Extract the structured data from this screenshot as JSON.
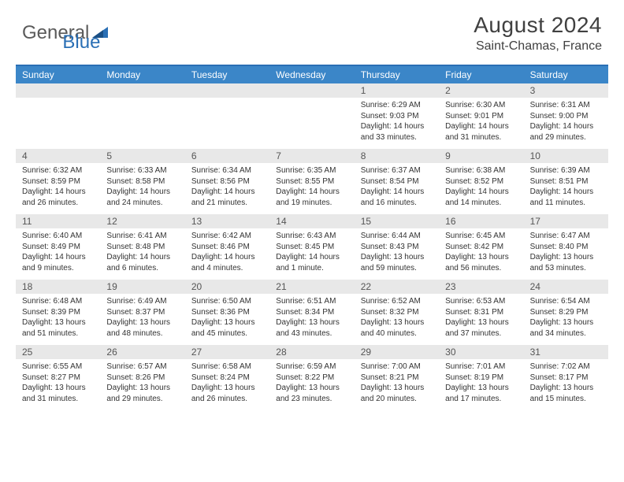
{
  "brand": {
    "part1": "General",
    "part2": "Blue"
  },
  "title": "August 2024",
  "location": "Saint-Chamas, France",
  "colors": {
    "header_bg": "#3b86c8",
    "border": "#2a6fb5",
    "date_bg": "#e8e8e8",
    "text": "#333333",
    "muted": "#555555"
  },
  "day_names": [
    "Sunday",
    "Monday",
    "Tuesday",
    "Wednesday",
    "Thursday",
    "Friday",
    "Saturday"
  ],
  "weeks": [
    {
      "dates": [
        "",
        "",
        "",
        "",
        "1",
        "2",
        "3"
      ],
      "details": [
        "",
        "",
        "",
        "",
        "Sunrise: 6:29 AM\nSunset: 9:03 PM\nDaylight: 14 hours and 33 minutes.",
        "Sunrise: 6:30 AM\nSunset: 9:01 PM\nDaylight: 14 hours and 31 minutes.",
        "Sunrise: 6:31 AM\nSunset: 9:00 PM\nDaylight: 14 hours and 29 minutes."
      ]
    },
    {
      "dates": [
        "4",
        "5",
        "6",
        "7",
        "8",
        "9",
        "10"
      ],
      "details": [
        "Sunrise: 6:32 AM\nSunset: 8:59 PM\nDaylight: 14 hours and 26 minutes.",
        "Sunrise: 6:33 AM\nSunset: 8:58 PM\nDaylight: 14 hours and 24 minutes.",
        "Sunrise: 6:34 AM\nSunset: 8:56 PM\nDaylight: 14 hours and 21 minutes.",
        "Sunrise: 6:35 AM\nSunset: 8:55 PM\nDaylight: 14 hours and 19 minutes.",
        "Sunrise: 6:37 AM\nSunset: 8:54 PM\nDaylight: 14 hours and 16 minutes.",
        "Sunrise: 6:38 AM\nSunset: 8:52 PM\nDaylight: 14 hours and 14 minutes.",
        "Sunrise: 6:39 AM\nSunset: 8:51 PM\nDaylight: 14 hours and 11 minutes."
      ]
    },
    {
      "dates": [
        "11",
        "12",
        "13",
        "14",
        "15",
        "16",
        "17"
      ],
      "details": [
        "Sunrise: 6:40 AM\nSunset: 8:49 PM\nDaylight: 14 hours and 9 minutes.",
        "Sunrise: 6:41 AM\nSunset: 8:48 PM\nDaylight: 14 hours and 6 minutes.",
        "Sunrise: 6:42 AM\nSunset: 8:46 PM\nDaylight: 14 hours and 4 minutes.",
        "Sunrise: 6:43 AM\nSunset: 8:45 PM\nDaylight: 14 hours and 1 minute.",
        "Sunrise: 6:44 AM\nSunset: 8:43 PM\nDaylight: 13 hours and 59 minutes.",
        "Sunrise: 6:45 AM\nSunset: 8:42 PM\nDaylight: 13 hours and 56 minutes.",
        "Sunrise: 6:47 AM\nSunset: 8:40 PM\nDaylight: 13 hours and 53 minutes."
      ]
    },
    {
      "dates": [
        "18",
        "19",
        "20",
        "21",
        "22",
        "23",
        "24"
      ],
      "details": [
        "Sunrise: 6:48 AM\nSunset: 8:39 PM\nDaylight: 13 hours and 51 minutes.",
        "Sunrise: 6:49 AM\nSunset: 8:37 PM\nDaylight: 13 hours and 48 minutes.",
        "Sunrise: 6:50 AM\nSunset: 8:36 PM\nDaylight: 13 hours and 45 minutes.",
        "Sunrise: 6:51 AM\nSunset: 8:34 PM\nDaylight: 13 hours and 43 minutes.",
        "Sunrise: 6:52 AM\nSunset: 8:32 PM\nDaylight: 13 hours and 40 minutes.",
        "Sunrise: 6:53 AM\nSunset: 8:31 PM\nDaylight: 13 hours and 37 minutes.",
        "Sunrise: 6:54 AM\nSunset: 8:29 PM\nDaylight: 13 hours and 34 minutes."
      ]
    },
    {
      "dates": [
        "25",
        "26",
        "27",
        "28",
        "29",
        "30",
        "31"
      ],
      "details": [
        "Sunrise: 6:55 AM\nSunset: 8:27 PM\nDaylight: 13 hours and 31 minutes.",
        "Sunrise: 6:57 AM\nSunset: 8:26 PM\nDaylight: 13 hours and 29 minutes.",
        "Sunrise: 6:58 AM\nSunset: 8:24 PM\nDaylight: 13 hours and 26 minutes.",
        "Sunrise: 6:59 AM\nSunset: 8:22 PM\nDaylight: 13 hours and 23 minutes.",
        "Sunrise: 7:00 AM\nSunset: 8:21 PM\nDaylight: 13 hours and 20 minutes.",
        "Sunrise: 7:01 AM\nSunset: 8:19 PM\nDaylight: 13 hours and 17 minutes.",
        "Sunrise: 7:02 AM\nSunset: 8:17 PM\nDaylight: 13 hours and 15 minutes."
      ]
    }
  ]
}
